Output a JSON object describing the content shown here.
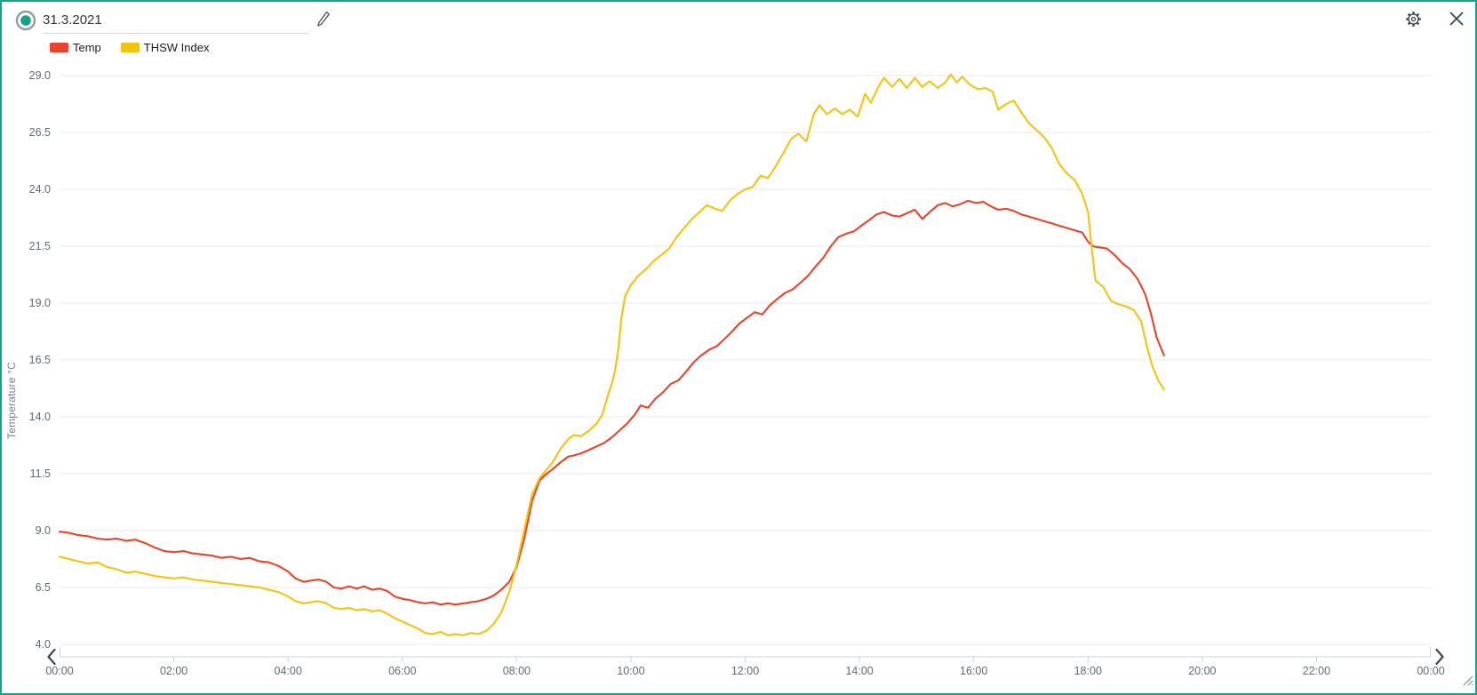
{
  "header": {
    "date_value": "31.3.2021"
  },
  "chart_data": {
    "type": "line",
    "title": "",
    "xlabel": "",
    "ylabel": "Temperature °C",
    "ylim": [
      4,
      29
    ],
    "xlim_hours": [
      0,
      24
    ],
    "grid": true,
    "legend_position": "top-left",
    "yticks": [
      29.0,
      26.5,
      24.0,
      21.5,
      19.0,
      16.5,
      14.0,
      11.5,
      9.0,
      6.5,
      4.0
    ],
    "ytick_labels": [
      "29.0",
      "26.5",
      "24.0",
      "21.5",
      "19.0",
      "16.5",
      "14.0",
      "11.5",
      "9.0",
      "6.5",
      "4.0"
    ],
    "xtick_hours": [
      0,
      2,
      4,
      6,
      8,
      10,
      12,
      14,
      16,
      18,
      20,
      22,
      24
    ],
    "xtick_labels": [
      "00:00",
      "02:00",
      "04:00",
      "06:00",
      "08:00",
      "10:00",
      "12:00",
      "14:00",
      "16:00",
      "18:00",
      "20:00",
      "22:00",
      "00:00"
    ],
    "series": [
      {
        "name": "Temp",
        "color": "#e8432d",
        "points": [
          [
            0,
            8.95
          ],
          [
            0.17,
            8.9
          ],
          [
            0.33,
            8.8
          ],
          [
            0.5,
            8.75
          ],
          [
            0.67,
            8.65
          ],
          [
            0.83,
            8.6
          ],
          [
            1,
            8.65
          ],
          [
            1.17,
            8.55
          ],
          [
            1.33,
            8.6
          ],
          [
            1.5,
            8.45
          ],
          [
            1.67,
            8.25
          ],
          [
            1.83,
            8.1
          ],
          [
            2,
            8.05
          ],
          [
            2.17,
            8.1
          ],
          [
            2.33,
            8.0
          ],
          [
            2.5,
            7.95
          ],
          [
            2.67,
            7.9
          ],
          [
            2.83,
            7.8
          ],
          [
            3,
            7.85
          ],
          [
            3.17,
            7.75
          ],
          [
            3.33,
            7.8
          ],
          [
            3.5,
            7.65
          ],
          [
            3.67,
            7.6
          ],
          [
            3.83,
            7.45
          ],
          [
            4,
            7.2
          ],
          [
            4.13,
            6.9
          ],
          [
            4.27,
            6.75
          ],
          [
            4.4,
            6.8
          ],
          [
            4.53,
            6.85
          ],
          [
            4.67,
            6.75
          ],
          [
            4.8,
            6.5
          ],
          [
            4.93,
            6.45
          ],
          [
            5.07,
            6.55
          ],
          [
            5.2,
            6.45
          ],
          [
            5.33,
            6.55
          ],
          [
            5.47,
            6.4
          ],
          [
            5.6,
            6.45
          ],
          [
            5.73,
            6.35
          ],
          [
            5.87,
            6.1
          ],
          [
            6,
            6.0
          ],
          [
            6.13,
            5.95
          ],
          [
            6.27,
            5.85
          ],
          [
            6.4,
            5.8
          ],
          [
            6.53,
            5.85
          ],
          [
            6.67,
            5.75
          ],
          [
            6.8,
            5.8
          ],
          [
            6.93,
            5.75
          ],
          [
            7.07,
            5.8
          ],
          [
            7.2,
            5.85
          ],
          [
            7.33,
            5.9
          ],
          [
            7.47,
            6.0
          ],
          [
            7.6,
            6.15
          ],
          [
            7.73,
            6.4
          ],
          [
            7.87,
            6.75
          ],
          [
            8,
            7.4
          ],
          [
            8.13,
            8.6
          ],
          [
            8.27,
            10.3
          ],
          [
            8.4,
            11.2
          ],
          [
            8.5,
            11.45
          ],
          [
            8.63,
            11.7
          ],
          [
            8.77,
            12.0
          ],
          [
            8.9,
            12.25
          ],
          [
            9,
            12.3
          ],
          [
            9.13,
            12.4
          ],
          [
            9.27,
            12.55
          ],
          [
            9.4,
            12.7
          ],
          [
            9.53,
            12.85
          ],
          [
            9.67,
            13.1
          ],
          [
            9.8,
            13.4
          ],
          [
            9.93,
            13.7
          ],
          [
            10.07,
            14.1
          ],
          [
            10.17,
            14.5
          ],
          [
            10.3,
            14.4
          ],
          [
            10.43,
            14.8
          ],
          [
            10.57,
            15.1
          ],
          [
            10.7,
            15.45
          ],
          [
            10.83,
            15.6
          ],
          [
            10.97,
            16.0
          ],
          [
            11.1,
            16.4
          ],
          [
            11.23,
            16.7
          ],
          [
            11.37,
            16.95
          ],
          [
            11.5,
            17.1
          ],
          [
            11.63,
            17.4
          ],
          [
            11.77,
            17.75
          ],
          [
            11.9,
            18.1
          ],
          [
            12.03,
            18.35
          ],
          [
            12.17,
            18.6
          ],
          [
            12.3,
            18.5
          ],
          [
            12.43,
            18.9
          ],
          [
            12.57,
            19.2
          ],
          [
            12.7,
            19.45
          ],
          [
            12.83,
            19.6
          ],
          [
            12.97,
            19.9
          ],
          [
            13.1,
            20.2
          ],
          [
            13.23,
            20.6
          ],
          [
            13.37,
            21.0
          ],
          [
            13.5,
            21.5
          ],
          [
            13.63,
            21.9
          ],
          [
            13.77,
            22.05
          ],
          [
            13.9,
            22.15
          ],
          [
            14.03,
            22.4
          ],
          [
            14.17,
            22.65
          ],
          [
            14.3,
            22.9
          ],
          [
            14.43,
            23.0
          ],
          [
            14.57,
            22.85
          ],
          [
            14.7,
            22.8
          ],
          [
            14.83,
            22.95
          ],
          [
            14.97,
            23.1
          ],
          [
            15.1,
            22.7
          ],
          [
            15.23,
            23.0
          ],
          [
            15.37,
            23.3
          ],
          [
            15.5,
            23.4
          ],
          [
            15.63,
            23.25
          ],
          [
            15.77,
            23.35
          ],
          [
            15.9,
            23.5
          ],
          [
            16.03,
            23.4
          ],
          [
            16.17,
            23.45
          ],
          [
            16.3,
            23.25
          ],
          [
            16.43,
            23.1
          ],
          [
            16.57,
            23.15
          ],
          [
            16.7,
            23.05
          ],
          [
            16.83,
            22.9
          ],
          [
            16.97,
            22.8
          ],
          [
            17.1,
            22.7
          ],
          [
            17.23,
            22.6
          ],
          [
            17.37,
            22.5
          ],
          [
            17.5,
            22.4
          ],
          [
            17.63,
            22.3
          ],
          [
            17.77,
            22.2
          ],
          [
            17.9,
            22.1
          ],
          [
            18,
            21.7
          ],
          [
            18.08,
            21.5
          ],
          [
            18.2,
            21.45
          ],
          [
            18.33,
            21.4
          ],
          [
            18.47,
            21.1
          ],
          [
            18.6,
            20.75
          ],
          [
            18.73,
            20.5
          ],
          [
            18.87,
            20.05
          ],
          [
            19,
            19.4
          ],
          [
            19.1,
            18.55
          ],
          [
            19.2,
            17.5
          ],
          [
            19.33,
            16.7
          ]
        ]
      },
      {
        "name": "THSW Index",
        "color": "#f1c40f",
        "points": [
          [
            0,
            7.85
          ],
          [
            0.17,
            7.75
          ],
          [
            0.33,
            7.65
          ],
          [
            0.5,
            7.55
          ],
          [
            0.67,
            7.6
          ],
          [
            0.83,
            7.4
          ],
          [
            1,
            7.3
          ],
          [
            1.17,
            7.15
          ],
          [
            1.33,
            7.2
          ],
          [
            1.5,
            7.1
          ],
          [
            1.67,
            7.0
          ],
          [
            1.83,
            6.95
          ],
          [
            2,
            6.9
          ],
          [
            2.17,
            6.95
          ],
          [
            2.33,
            6.85
          ],
          [
            2.5,
            6.8
          ],
          [
            2.67,
            6.75
          ],
          [
            2.83,
            6.7
          ],
          [
            3,
            6.65
          ],
          [
            3.17,
            6.6
          ],
          [
            3.33,
            6.55
          ],
          [
            3.5,
            6.5
          ],
          [
            3.67,
            6.4
          ],
          [
            3.83,
            6.3
          ],
          [
            4,
            6.1
          ],
          [
            4.13,
            5.9
          ],
          [
            4.27,
            5.8
          ],
          [
            4.4,
            5.85
          ],
          [
            4.53,
            5.9
          ],
          [
            4.67,
            5.8
          ],
          [
            4.8,
            5.6
          ],
          [
            4.93,
            5.55
          ],
          [
            5.07,
            5.6
          ],
          [
            5.2,
            5.5
          ],
          [
            5.33,
            5.55
          ],
          [
            5.47,
            5.45
          ],
          [
            5.6,
            5.5
          ],
          [
            5.73,
            5.35
          ],
          [
            5.87,
            5.15
          ],
          [
            6,
            5.0
          ],
          [
            6.13,
            4.85
          ],
          [
            6.27,
            4.7
          ],
          [
            6.4,
            4.5
          ],
          [
            6.53,
            4.45
          ],
          [
            6.67,
            4.55
          ],
          [
            6.8,
            4.4
          ],
          [
            6.93,
            4.45
          ],
          [
            7.07,
            4.4
          ],
          [
            7.2,
            4.5
          ],
          [
            7.33,
            4.45
          ],
          [
            7.47,
            4.6
          ],
          [
            7.6,
            4.9
          ],
          [
            7.73,
            5.4
          ],
          [
            7.87,
            6.3
          ],
          [
            8,
            7.5
          ],
          [
            8.13,
            9.0
          ],
          [
            8.27,
            10.6
          ],
          [
            8.4,
            11.3
          ],
          [
            8.5,
            11.6
          ],
          [
            8.63,
            12.0
          ],
          [
            8.77,
            12.6
          ],
          [
            8.9,
            13.0
          ],
          [
            9,
            13.2
          ],
          [
            9.13,
            13.15
          ],
          [
            9.27,
            13.4
          ],
          [
            9.4,
            13.7
          ],
          [
            9.5,
            14.1
          ],
          [
            9.58,
            14.8
          ],
          [
            9.67,
            15.5
          ],
          [
            9.72,
            16.0
          ],
          [
            9.78,
            17.0
          ],
          [
            9.83,
            18.3
          ],
          [
            9.9,
            19.3
          ],
          [
            10,
            19.8
          ],
          [
            10.13,
            20.2
          ],
          [
            10.27,
            20.5
          ],
          [
            10.4,
            20.85
          ],
          [
            10.53,
            21.1
          ],
          [
            10.67,
            21.4
          ],
          [
            10.8,
            21.9
          ],
          [
            10.93,
            22.3
          ],
          [
            11.07,
            22.7
          ],
          [
            11.2,
            23.0
          ],
          [
            11.33,
            23.3
          ],
          [
            11.47,
            23.15
          ],
          [
            11.6,
            23.05
          ],
          [
            11.73,
            23.5
          ],
          [
            11.87,
            23.8
          ],
          [
            12,
            24.0
          ],
          [
            12.13,
            24.1
          ],
          [
            12.27,
            24.6
          ],
          [
            12.4,
            24.5
          ],
          [
            12.53,
            25.0
          ],
          [
            12.67,
            25.6
          ],
          [
            12.8,
            26.2
          ],
          [
            12.93,
            26.45
          ],
          [
            13.07,
            26.1
          ],
          [
            13.2,
            27.3
          ],
          [
            13.3,
            27.7
          ],
          [
            13.43,
            27.3
          ],
          [
            13.57,
            27.55
          ],
          [
            13.7,
            27.3
          ],
          [
            13.83,
            27.5
          ],
          [
            13.97,
            27.2
          ],
          [
            14.1,
            28.2
          ],
          [
            14.2,
            27.8
          ],
          [
            14.33,
            28.5
          ],
          [
            14.43,
            28.9
          ],
          [
            14.57,
            28.5
          ],
          [
            14.7,
            28.85
          ],
          [
            14.83,
            28.45
          ],
          [
            14.97,
            28.9
          ],
          [
            15.1,
            28.5
          ],
          [
            15.23,
            28.75
          ],
          [
            15.37,
            28.45
          ],
          [
            15.5,
            28.7
          ],
          [
            15.6,
            29.05
          ],
          [
            15.7,
            28.7
          ],
          [
            15.8,
            28.95
          ],
          [
            15.93,
            28.6
          ],
          [
            16.07,
            28.4
          ],
          [
            16.2,
            28.45
          ],
          [
            16.33,
            28.3
          ],
          [
            16.43,
            27.5
          ],
          [
            16.57,
            27.75
          ],
          [
            16.7,
            27.9
          ],
          [
            16.83,
            27.4
          ],
          [
            16.97,
            26.9
          ],
          [
            17.1,
            26.6
          ],
          [
            17.23,
            26.3
          ],
          [
            17.37,
            25.8
          ],
          [
            17.5,
            25.1
          ],
          [
            17.63,
            24.7
          ],
          [
            17.77,
            24.4
          ],
          [
            17.9,
            23.8
          ],
          [
            18,
            23.0
          ],
          [
            18.07,
            21.3
          ],
          [
            18.13,
            20.0
          ],
          [
            18.27,
            19.7
          ],
          [
            18.4,
            19.1
          ],
          [
            18.53,
            18.95
          ],
          [
            18.67,
            18.85
          ],
          [
            18.8,
            18.7
          ],
          [
            18.93,
            18.2
          ],
          [
            19.03,
            17.1
          ],
          [
            19.13,
            16.2
          ],
          [
            19.23,
            15.6
          ],
          [
            19.33,
            15.2
          ]
        ]
      }
    ]
  },
  "colors": {
    "window_border": "#17a287",
    "gridline": "#e8e8e8",
    "axis_line": "#c9d3da",
    "tick_text": "#5f6b76",
    "icon": "#37474f"
  }
}
